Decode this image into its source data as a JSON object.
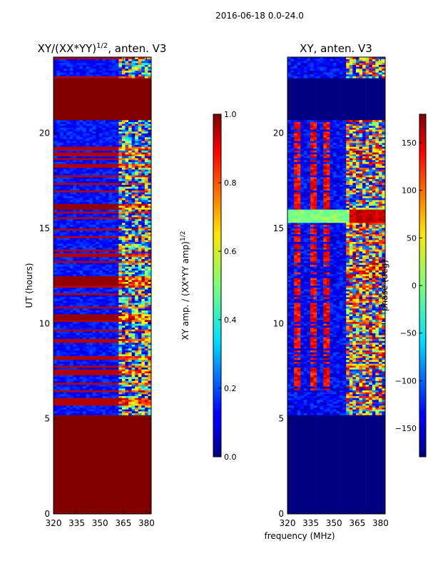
{
  "figure_title": "2016-06-18 0.0-24.0",
  "shared_xlabel": "frequency (MHz)",
  "chart_data": [
    {
      "type": "heatmap",
      "title": "XY/(XX*YY)^1/2, anten. V3",
      "title_main": "XY/(XX*YY)",
      "title_sup": "1/2",
      "title_suffix": ", anten. V3",
      "xlabel": "",
      "ylabel": "UT (hours)",
      "xlim": [
        320,
        383
      ],
      "ylim": [
        0,
        24
      ],
      "xticks": [
        320,
        335,
        350,
        365,
        380
      ],
      "yticks": [
        0,
        5,
        10,
        15,
        20
      ],
      "colorbar": {
        "label": "XY amp. / (XX*YY amp)^1/2",
        "label_main": "XY amp. / (XX*YY amp)",
        "label_sup": "1/2",
        "vmin": 0.0,
        "vmax": 1.0,
        "ticks": [
          "0.0",
          "0.2",
          "0.4",
          "0.6",
          "0.8",
          "1.0"
        ],
        "tick_values": [
          0.0,
          0.2,
          0.4,
          0.6,
          0.8,
          1.0
        ]
      },
      "saturated_time_ranges": [
        [
          0.0,
          5.2
        ],
        [
          20.7,
          22.9
        ],
        [
          12.0,
          12.5
        ],
        [
          10.2,
          10.5
        ],
        [
          16.0,
          16.3
        ]
      ]
    },
    {
      "type": "heatmap",
      "title": "XY, anten. V3",
      "xlabel": "frequency (MHz)",
      "ylabel": "",
      "xlim": [
        320,
        383
      ],
      "ylim": [
        0,
        24
      ],
      "xticks": [
        320,
        335,
        350,
        365,
        380
      ],
      "yticks": [
        0,
        5,
        10,
        15,
        20
      ],
      "colorbar": {
        "label": "phase (deg)",
        "vmin": -180,
        "vmax": 180,
        "ticks": [
          "−150",
          "−100",
          "−50",
          "0",
          "50",
          "100",
          "150"
        ],
        "tick_values": [
          -150,
          -100,
          -50,
          0,
          50,
          100,
          150
        ]
      },
      "flat_time_ranges": [
        [
          0.0,
          5.2
        ],
        [
          20.7,
          22.9
        ]
      ]
    }
  ]
}
